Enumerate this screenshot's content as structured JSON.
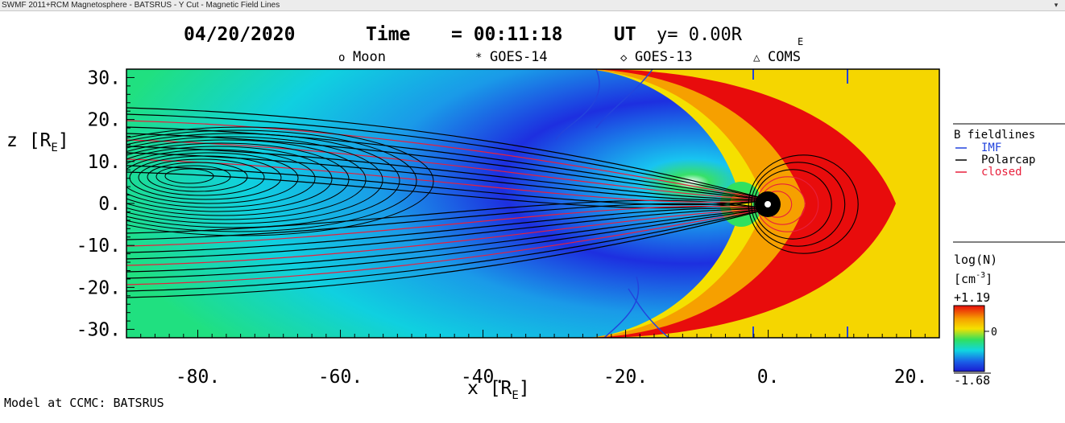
{
  "window": {
    "title": "SWMF 2011+RCM Magnetosphere - BATSRUS - Y Cut - Magnetic Field Lines",
    "menu_glyph": "▾"
  },
  "plot": {
    "title_date": "04/20/2020",
    "title_time_label": "Time",
    "title_time_value": "= 00:11:18",
    "title_ut": "UT",
    "title_cut": "y= 0.00R",
    "title_cut_sub": "E",
    "markers": [
      {
        "symbol": "o",
        "label": "Moon"
      },
      {
        "symbol": "*",
        "label": "GOES-14"
      },
      {
        "symbol": "◇",
        "label": "GOES-13"
      },
      {
        "symbol": "△",
        "label": "COMS"
      }
    ],
    "xlabel": "x [R",
    "xlabel_sub": "E",
    "xlabel_close": "]",
    "ylabel": "z [R",
    "ylabel_sub": "E",
    "ylabel_close": "]",
    "credit": "Model at CCMC: BATSRUS"
  },
  "chart_data": {
    "type": "heatmap",
    "x_ticks": [
      "-80.",
      "-60.",
      "-40.",
      "-20.",
      "0.",
      "20."
    ],
    "y_ticks": [
      "30.",
      "20.",
      "10.",
      "0.",
      "-10.",
      "-20.",
      "-30."
    ],
    "xlim": [
      -90,
      24
    ],
    "ylim": [
      -32,
      32
    ],
    "colors": {
      "low": "#1a1ad0",
      "mid": "#10d6e0",
      "green": "#30e060",
      "high_yellow": "#f5d600",
      "high_red": "#e80c0c"
    },
    "bow_shock_nose_x": 18,
    "colorbar": {
      "title": "log(N)",
      "unit": "[cm",
      "unit_sup": "-3",
      "unit_close": "]",
      "max_label": "+1.19",
      "mid_label": "0",
      "min_label": "-1.68"
    },
    "fieldline_legend": {
      "title": "B fieldlines",
      "entries": [
        {
          "label": "IMF",
          "color": "#2244dd"
        },
        {
          "label": "Polarcap",
          "color": "#000000"
        },
        {
          "label": "closed",
          "color": "#e8203c"
        }
      ]
    }
  }
}
